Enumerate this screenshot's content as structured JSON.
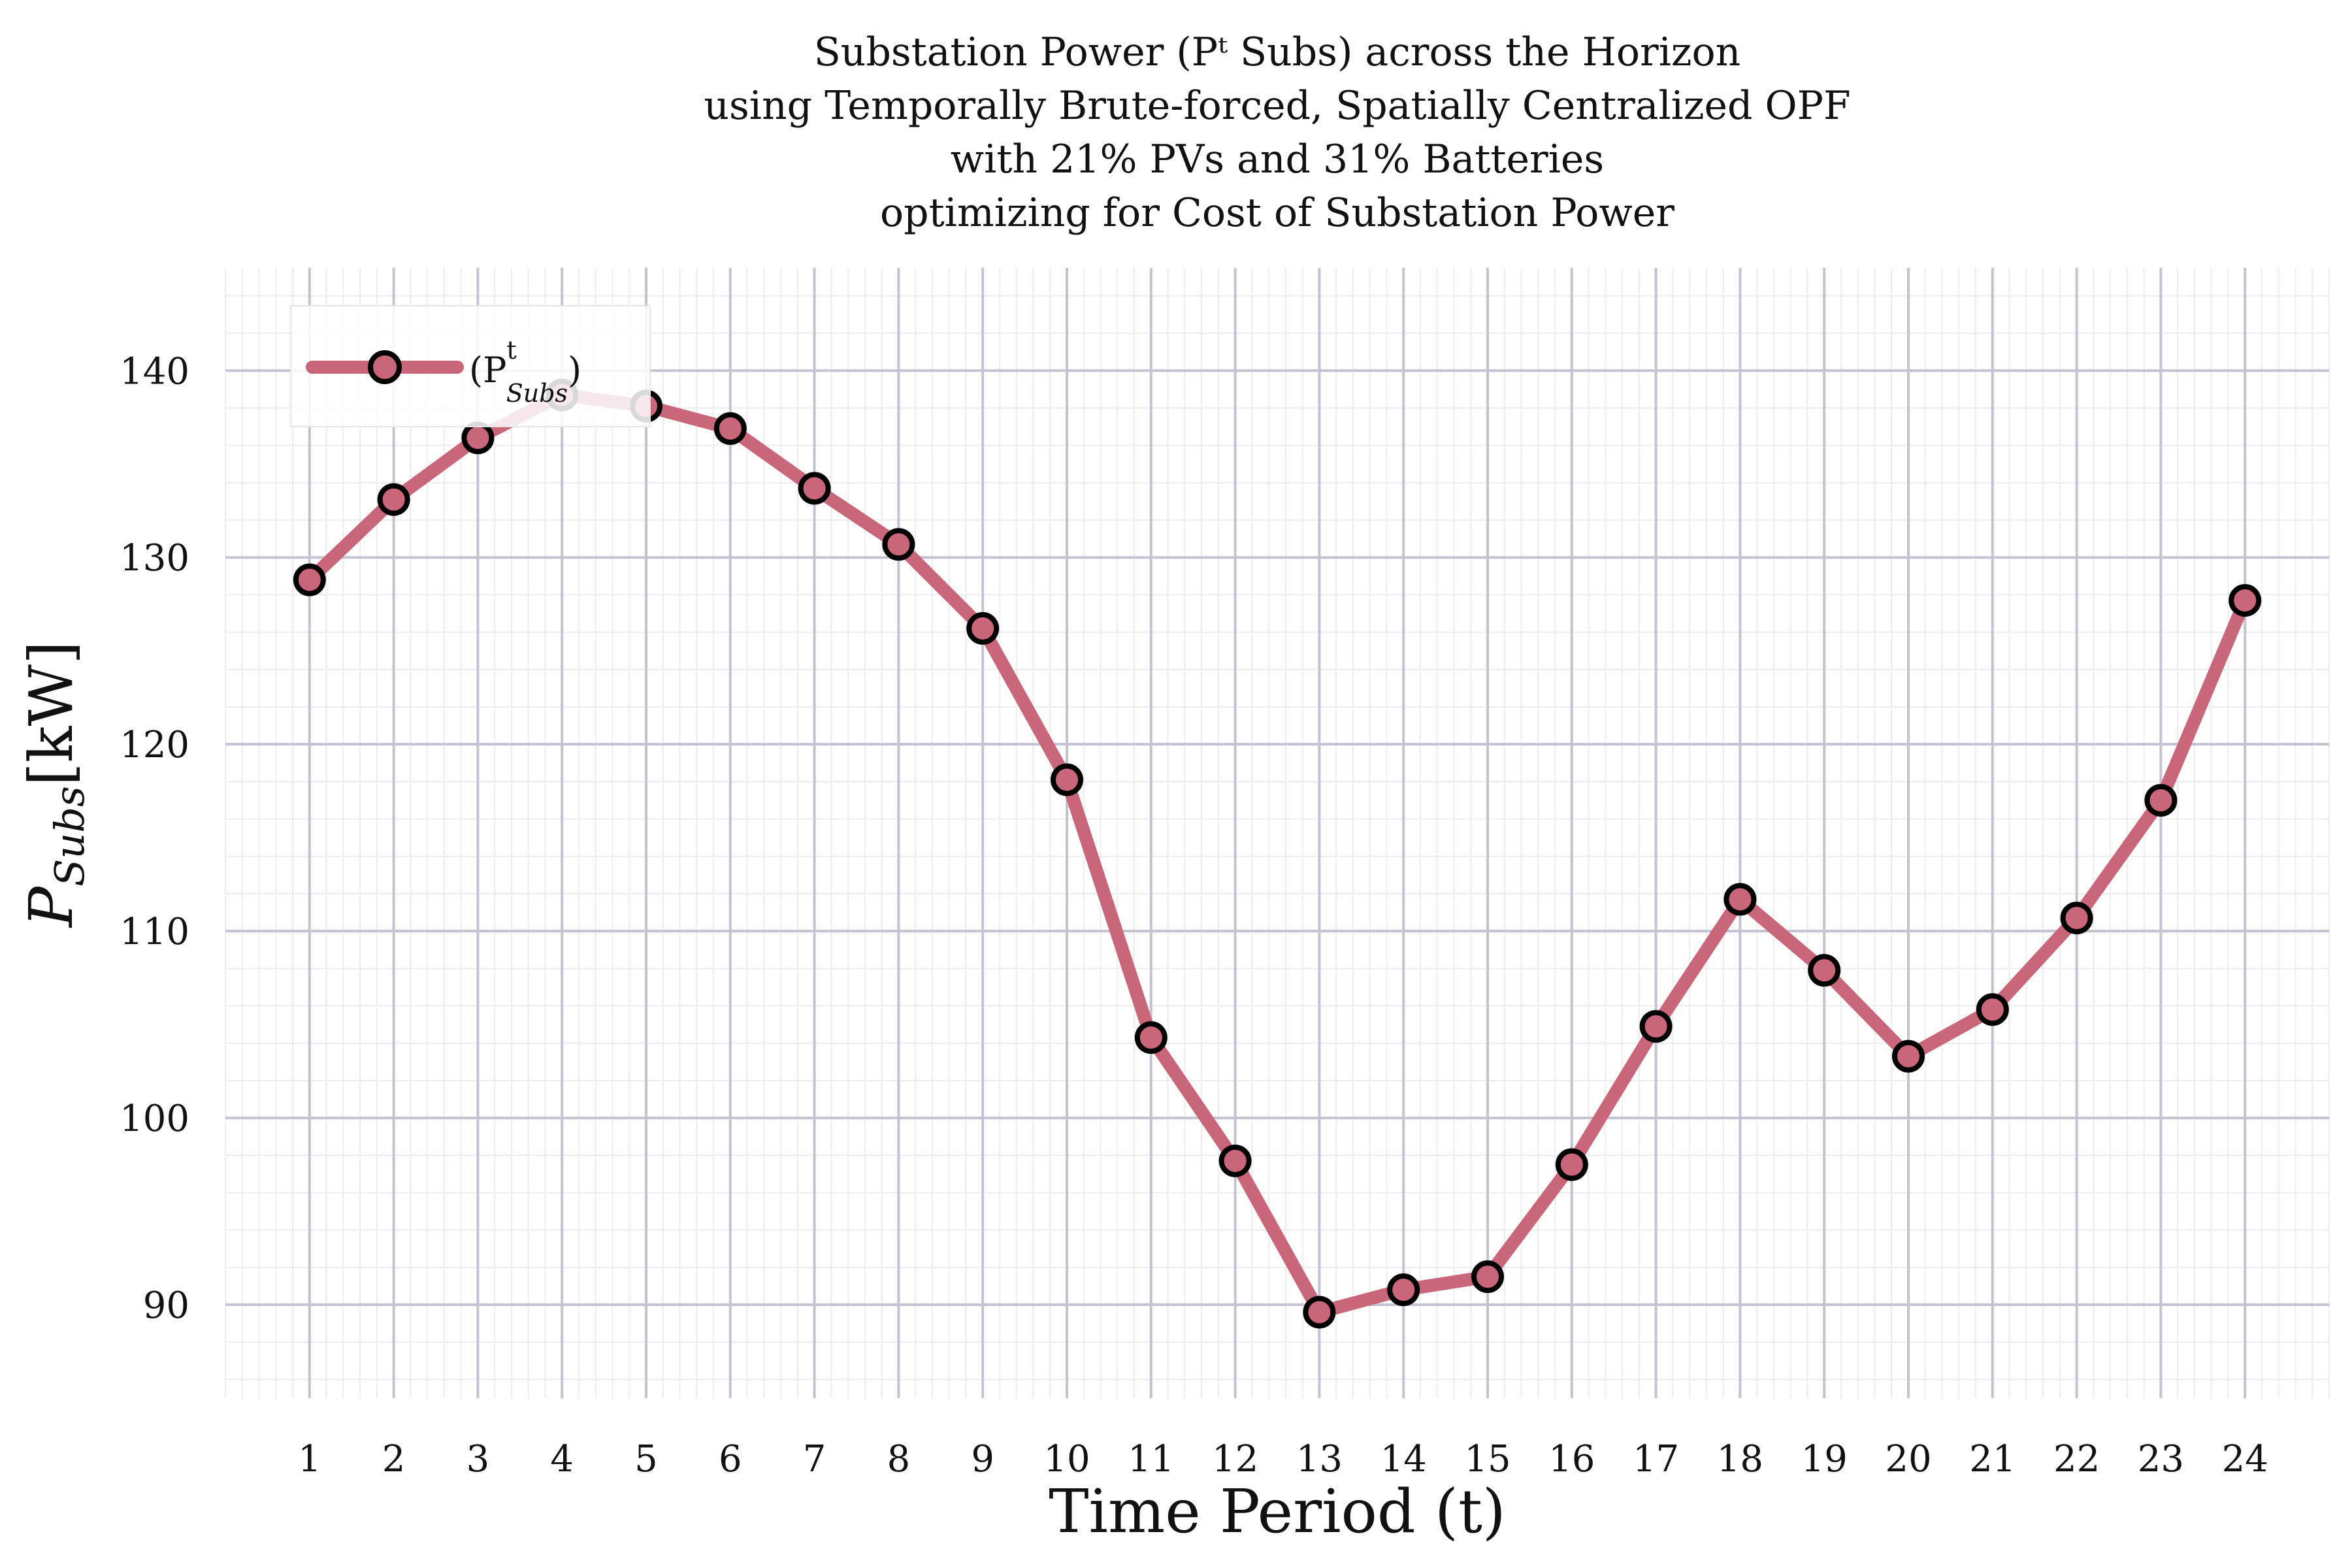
{
  "chart_data": {
    "type": "line",
    "title_lines": [
      "Substation Power (Pᵗ Subs) across the Horizon",
      "using Temporally Brute-forced, Spatially Centralized OPF",
      "with 21% PVs and 31% Batteries",
      "optimizing for Cost of Substation Power"
    ],
    "xlabel": "Time Period (t)",
    "ylabel_main": "P",
    "ylabel_sub": "Subs",
    "ylabel_unit": "[kW]",
    "x": [
      1,
      2,
      3,
      4,
      5,
      6,
      7,
      8,
      9,
      10,
      11,
      12,
      13,
      14,
      15,
      16,
      17,
      18,
      19,
      20,
      21,
      22,
      23,
      24
    ],
    "x_tick_labels": [
      "1",
      "2",
      "3",
      "4",
      "5",
      "6",
      "7",
      "8",
      "9",
      "10",
      "11",
      "12",
      "13",
      "14",
      "15",
      "16",
      "17",
      "18",
      "19",
      "20",
      "21",
      "22",
      "23",
      "24"
    ],
    "y_ticks": [
      90,
      100,
      110,
      120,
      130,
      140
    ],
    "y_tick_labels": [
      "90",
      "100",
      "110",
      "120",
      "130",
      "140"
    ],
    "xlim": [
      0,
      25
    ],
    "ylim": [
      85,
      145.5
    ],
    "grid": true,
    "legend_position": "top-left",
    "series": [
      {
        "name": "(Pᵗ Subs)",
        "legend_main": "(P",
        "legend_sup": "t",
        "legend_sub": "Subs",
        "legend_close": ")",
        "color": "#c9667a",
        "marker_face": "#c9667a",
        "marker_edge": "#000000",
        "values": [
          128.8,
          133.1,
          136.4,
          138.7,
          138.1,
          136.9,
          133.7,
          130.7,
          126.2,
          118.1,
          104.3,
          97.7,
          89.6,
          90.8,
          91.5,
          97.5,
          104.9,
          111.7,
          107.9,
          103.3,
          105.8,
          110.7,
          117.0,
          127.7
        ]
      }
    ]
  }
}
